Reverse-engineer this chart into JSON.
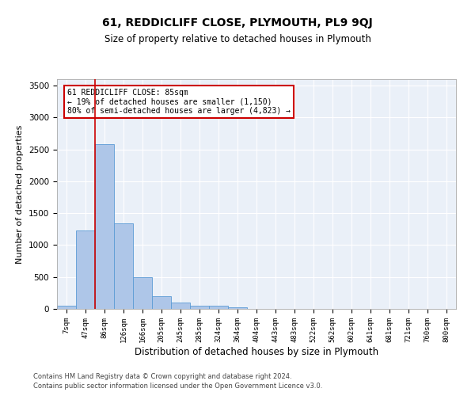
{
  "title": "61, REDDICLIFF CLOSE, PLYMOUTH, PL9 9QJ",
  "subtitle": "Size of property relative to detached houses in Plymouth",
  "xlabel": "Distribution of detached houses by size in Plymouth",
  "ylabel": "Number of detached properties",
  "bar_color": "#aec6e8",
  "bar_edge_color": "#5b9bd5",
  "background_color": "#eaf0f8",
  "categories": [
    "7sqm",
    "47sqm",
    "86sqm",
    "126sqm",
    "166sqm",
    "205sqm",
    "245sqm",
    "285sqm",
    "324sqm",
    "364sqm",
    "404sqm",
    "443sqm",
    "483sqm",
    "522sqm",
    "562sqm",
    "602sqm",
    "641sqm",
    "681sqm",
    "721sqm",
    "760sqm",
    "800sqm"
  ],
  "values": [
    50,
    1230,
    2580,
    1340,
    500,
    195,
    105,
    50,
    45,
    30,
    0,
    0,
    0,
    0,
    0,
    0,
    0,
    0,
    0,
    0,
    0
  ],
  "red_line_x": 1.5,
  "annotation_text": "61 REDDICLIFF CLOSE: 85sqm\n← 19% of detached houses are smaller (1,150)\n80% of semi-detached houses are larger (4,823) →",
  "annotation_box_color": "#ffffff",
  "annotation_border_color": "#cc0000",
  "footer_line1": "Contains HM Land Registry data © Crown copyright and database right 2024.",
  "footer_line2": "Contains public sector information licensed under the Open Government Licence v3.0.",
  "ylim": [
    0,
    3600
  ],
  "yticks": [
    0,
    500,
    1000,
    1500,
    2000,
    2500,
    3000,
    3500
  ]
}
